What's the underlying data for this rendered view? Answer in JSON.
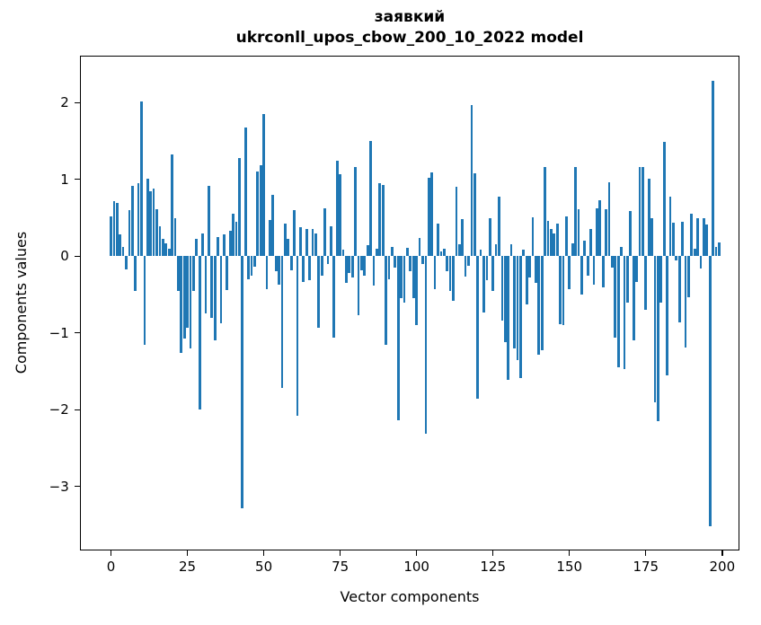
{
  "chart_data": {
    "type": "bar",
    "title": "заявкий",
    "subtitle": "ukrconll_upos_cbow_200_10_2022 model",
    "xlabel": "Vector components",
    "ylabel": "Components values",
    "bar_color": "#1f77b4",
    "n_components": 200,
    "x_start": 0,
    "xlim": [
      -10.5,
      205.5
    ],
    "ylim": [
      -3.82,
      2.61
    ],
    "grid": false,
    "legend_position": null,
    "x_tick_values": [
      0,
      25,
      50,
      75,
      100,
      125,
      150,
      175,
      200
    ],
    "x_tick_labels": [
      "0",
      "25",
      "50",
      "75",
      "100",
      "125",
      "150",
      "175",
      "200"
    ],
    "y_tick_values": [
      2,
      1,
      0,
      -1,
      -2,
      -3
    ],
    "y_tick_labels": [
      "2",
      "1",
      "0",
      "−1",
      "−2",
      "−3"
    ],
    "values": [
      0.52,
      0.72,
      0.69,
      0.29,
      0.12,
      -0.17,
      0.6,
      0.92,
      -0.45,
      0.95,
      2.02,
      -1.15,
      1.01,
      0.85,
      0.88,
      0.61,
      0.39,
      0.22,
      0.17,
      0.1,
      1.32,
      0.5,
      -0.45,
      -1.26,
      -1.07,
      -0.93,
      -1.2,
      -0.45,
      0.22,
      -2.0,
      0.3,
      -0.75,
      0.92,
      -0.8,
      -1.1,
      0.25,
      -0.87,
      0.28,
      -0.44,
      0.33,
      0.55,
      0.45,
      1.28,
      -3.28,
      1.68,
      -0.3,
      -0.25,
      -0.14,
      1.1,
      1.18,
      1.85,
      -0.43,
      0.47,
      0.8,
      -0.19,
      -0.37,
      -1.71,
      0.42,
      0.23,
      -0.18,
      0.6,
      -2.08,
      0.38,
      -0.33,
      0.36,
      -0.31,
      0.35,
      0.3,
      -0.93,
      -0.25,
      0.62,
      -0.1,
      0.39,
      -1.06,
      1.24,
      1.07,
      0.08,
      -0.35,
      -0.22,
      -0.28,
      1.16,
      -0.77,
      -0.18,
      -0.25,
      0.14,
      1.5,
      -0.38,
      0.1,
      0.95,
      0.93,
      -1.15,
      -0.3,
      0.12,
      -0.15,
      -2.14,
      -0.55,
      -0.6,
      0.11,
      -0.2,
      -0.55,
      -0.9,
      0.24,
      -0.1,
      -2.31,
      1.02,
      1.09,
      -0.43,
      0.42,
      0.06,
      0.1,
      -0.2,
      -0.45,
      -0.58,
      0.9,
      0.15,
      0.48,
      -0.27,
      -0.12,
      1.97,
      1.08,
      -1.86,
      0.09,
      -0.73,
      -0.31,
      0.49,
      -0.45,
      0.15,
      0.78,
      -0.84,
      -1.12,
      -1.61,
      0.16,
      -1.2,
      -1.35,
      -1.59,
      0.08,
      -0.63,
      -0.28,
      0.51,
      -0.35,
      -1.28,
      -1.22,
      1.16,
      0.46,
      0.35,
      0.3,
      0.42,
      -0.88,
      -0.9,
      0.52,
      -0.43,
      0.17,
      1.16,
      0.61,
      -0.5,
      0.2,
      -0.25,
      0.35,
      -0.37,
      0.62,
      0.73,
      -0.41,
      0.61,
      0.96,
      -0.15,
      -1.06,
      -1.45,
      0.12,
      -1.47,
      -0.6,
      0.59,
      -1.1,
      -0.33,
      1.16,
      1.16,
      -0.7,
      1.01,
      0.49,
      -1.9,
      -2.15,
      -0.61,
      1.49,
      -1.55,
      0.78,
      0.44,
      -0.06,
      -0.86,
      0.45,
      -1.19,
      -0.53,
      0.55,
      0.1,
      0.49,
      -0.16,
      0.49,
      0.41,
      -3.52,
      2.28,
      0.12,
      0.18
    ]
  }
}
